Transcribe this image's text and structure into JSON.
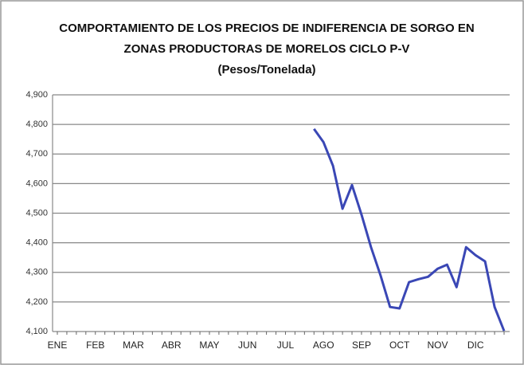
{
  "chart_data": {
    "type": "line",
    "title": [
      "COMPORTAMIENTO DE LOS PRECIOS DE INDIFERENCIA DE SORGO EN",
      "ZONAS PRODUCTORAS DE MORELOS CICLO P-V"
    ],
    "subtitle": "(Pesos/Tonelada)",
    "categories": [
      "ENE",
      null,
      null,
      null,
      "FEB",
      null,
      null,
      null,
      "MAR",
      null,
      null,
      null,
      "ABR",
      null,
      null,
      null,
      "MAY",
      null,
      null,
      null,
      "JUN",
      null,
      null,
      null,
      "JUL",
      null,
      null,
      null,
      "AGO",
      null,
      null,
      null,
      "SEP",
      null,
      null,
      null,
      "OCT",
      null,
      null,
      null,
      "NOV",
      null,
      null,
      null,
      "DIC",
      null,
      null,
      null
    ],
    "values": [
      null,
      null,
      null,
      null,
      null,
      null,
      null,
      null,
      null,
      null,
      null,
      null,
      null,
      null,
      null,
      null,
      null,
      null,
      null,
      null,
      null,
      null,
      null,
      null,
      null,
      null,
      null,
      4785,
      4740,
      4660,
      4515,
      4595,
      4495,
      4385,
      4290,
      4183,
      4178,
      4267,
      4277,
      4285,
      4312,
      4326,
      4250,
      4385,
      4358,
      4337,
      4183,
      4102
    ],
    "color": "#3a47b5",
    "ylim": [
      4100,
      4900
    ],
    "yticks": [
      {
        "value": 4100,
        "label": "4,100"
      },
      {
        "value": 4200,
        "label": "4,200"
      },
      {
        "value": 4300,
        "label": "4,300"
      },
      {
        "value": 4400,
        "label": "4,400"
      },
      {
        "value": 4500,
        "label": "4,500"
      },
      {
        "value": 4600,
        "label": "4,600"
      },
      {
        "value": 4700,
        "label": "4,700"
      },
      {
        "value": 4800,
        "label": "4,800"
      },
      {
        "value": 4900,
        "label": "4,900"
      }
    ],
    "grid": true
  }
}
